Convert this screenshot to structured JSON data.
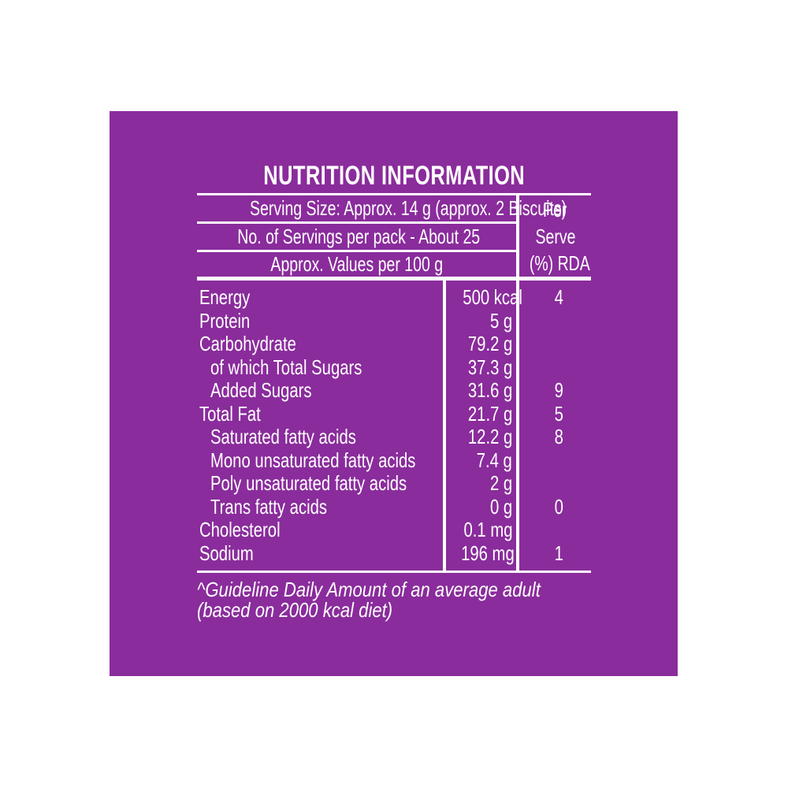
{
  "colors": {
    "panel_background": "#8A2C9C",
    "text": "#FFFFFF",
    "page_background": "#FFFFFF"
  },
  "title": "NUTRITION INFORMATION",
  "header": {
    "serving_size": "Serving Size: Approx. 14 g (approx. 2 Biscuits)",
    "servings_per_pack": "No. of Servings per pack - About 25",
    "values_per": "Approx. Values per 100 g",
    "per_serve": {
      "line1": "Per",
      "line2": "Serve",
      "line3": "(%) RDA"
    }
  },
  "body": {
    "rows": [
      {
        "name": "Energy",
        "value": "500 kcal",
        "rda": "4"
      },
      {
        "name": "Protein",
        "value": "5 g",
        "rda": ""
      },
      {
        "name": "Carbohydrate",
        "value": "79.2 g",
        "rda": ""
      },
      {
        "name": "of which Total Sugars",
        "value": "37.3 g",
        "rda": ""
      },
      {
        "name": "Added Sugars",
        "value": "31.6 g",
        "rda": "9"
      },
      {
        "name": "Total Fat",
        "value": "21.7 g",
        "rda": "5"
      },
      {
        "name": "Saturated fatty acids",
        "value": "12.2 g",
        "rda": "8"
      },
      {
        "name": "Mono unsaturated fatty acids",
        "value": "7.4 g",
        "rda": ""
      },
      {
        "name": "Poly unsaturated fatty acids",
        "value": "2 g",
        "rda": ""
      },
      {
        "name": "Trans fatty acids",
        "value": "0 g",
        "rda": "0"
      },
      {
        "name": "Cholesterol",
        "value": "0.1 mg",
        "rda": ""
      },
      {
        "name": "Sodium",
        "value": "196 mg",
        "rda": "1"
      }
    ]
  },
  "footnote": {
    "line1": "^Guideline Daily Amount of an average adult",
    "line2": "(based on 2000 kcal diet)"
  }
}
